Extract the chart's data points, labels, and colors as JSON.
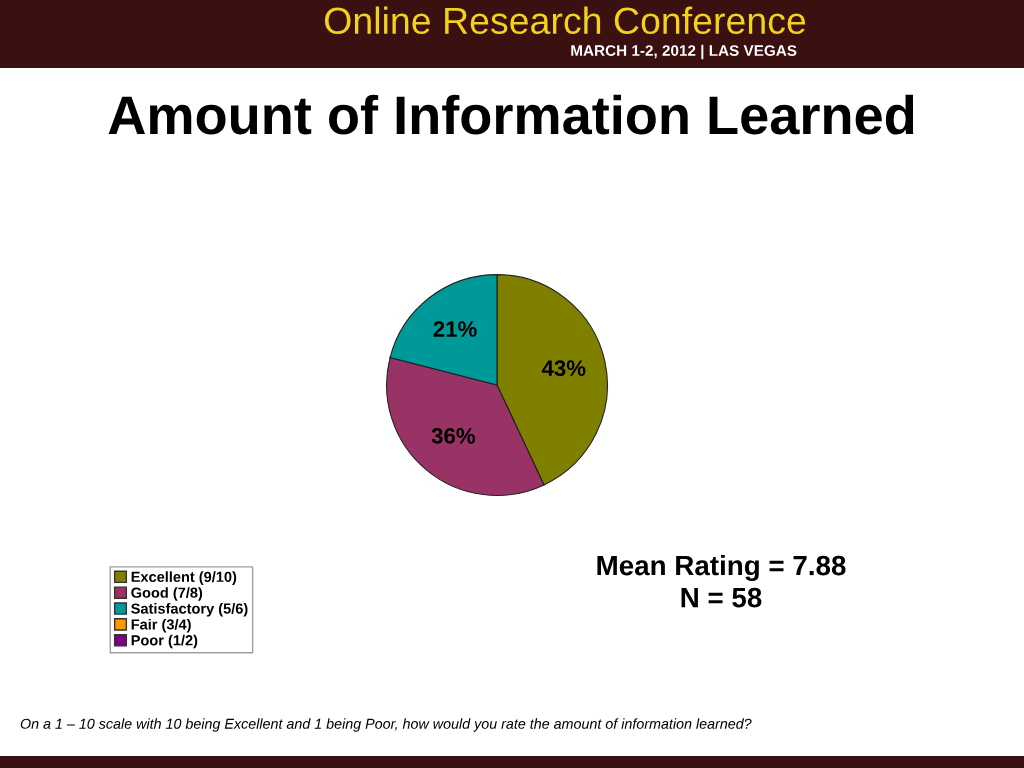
{
  "chart_data": {
    "type": "pie",
    "title": "Amount of Information Learned",
    "categories": [
      "Excellent (9/10)",
      "Good (7/8)",
      "Satisfactory (5/6)",
      "Fair (3/4)",
      "Poor (1/2)"
    ],
    "values": [
      43,
      36,
      21,
      0,
      0
    ],
    "colors": [
      "#808000",
      "#993366",
      "#009999",
      "#ff9900",
      "#800080"
    ],
    "value_labels": [
      "43%",
      "36%",
      "21%",
      null,
      null
    ],
    "legend": "bottom left",
    "annotations": [
      "Online Research Conference",
      "MARCH 1-2, 2012 | LAS VEGAS",
      "Mean Rating = 7.88",
      "N = 58",
      "On a 1 – 10 scale with 10 being Excellent and 1 being Poor, how would you rate the amount of information learned?"
    ]
  }
}
